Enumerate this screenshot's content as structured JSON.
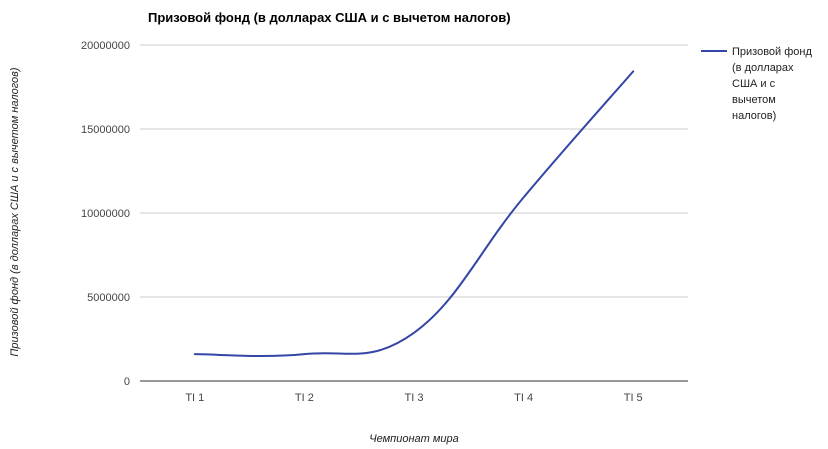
{
  "chart_data": {
    "type": "line",
    "title": "Призовой фонд (в долларах США и с вычетом налогов)",
    "xlabel": "Чемпионат мира",
    "ylabel": "Призовой фонд (в долларах США и с вычетом налогов)",
    "categories": [
      "TI 1",
      "TI 2",
      "TI 3",
      "TI 4",
      "TI 5"
    ],
    "ylim": [
      0,
      20000000
    ],
    "yticks": [
      "0",
      "5000000",
      "10000000",
      "15000000",
      "20000000"
    ],
    "series": [
      {
        "name": "Призовой фонд (в долларах США и с вычетом налогов)",
        "legend_lines": [
          "Призовой фонд",
          "(в долларах",
          "США и с",
          "вычетом",
          "налогов)"
        ],
        "color": "#3346a7",
        "values": [
          1600000,
          1600000,
          2870000,
          10930000,
          18430000
        ]
      }
    ],
    "grid": true,
    "legend_position": "right"
  }
}
